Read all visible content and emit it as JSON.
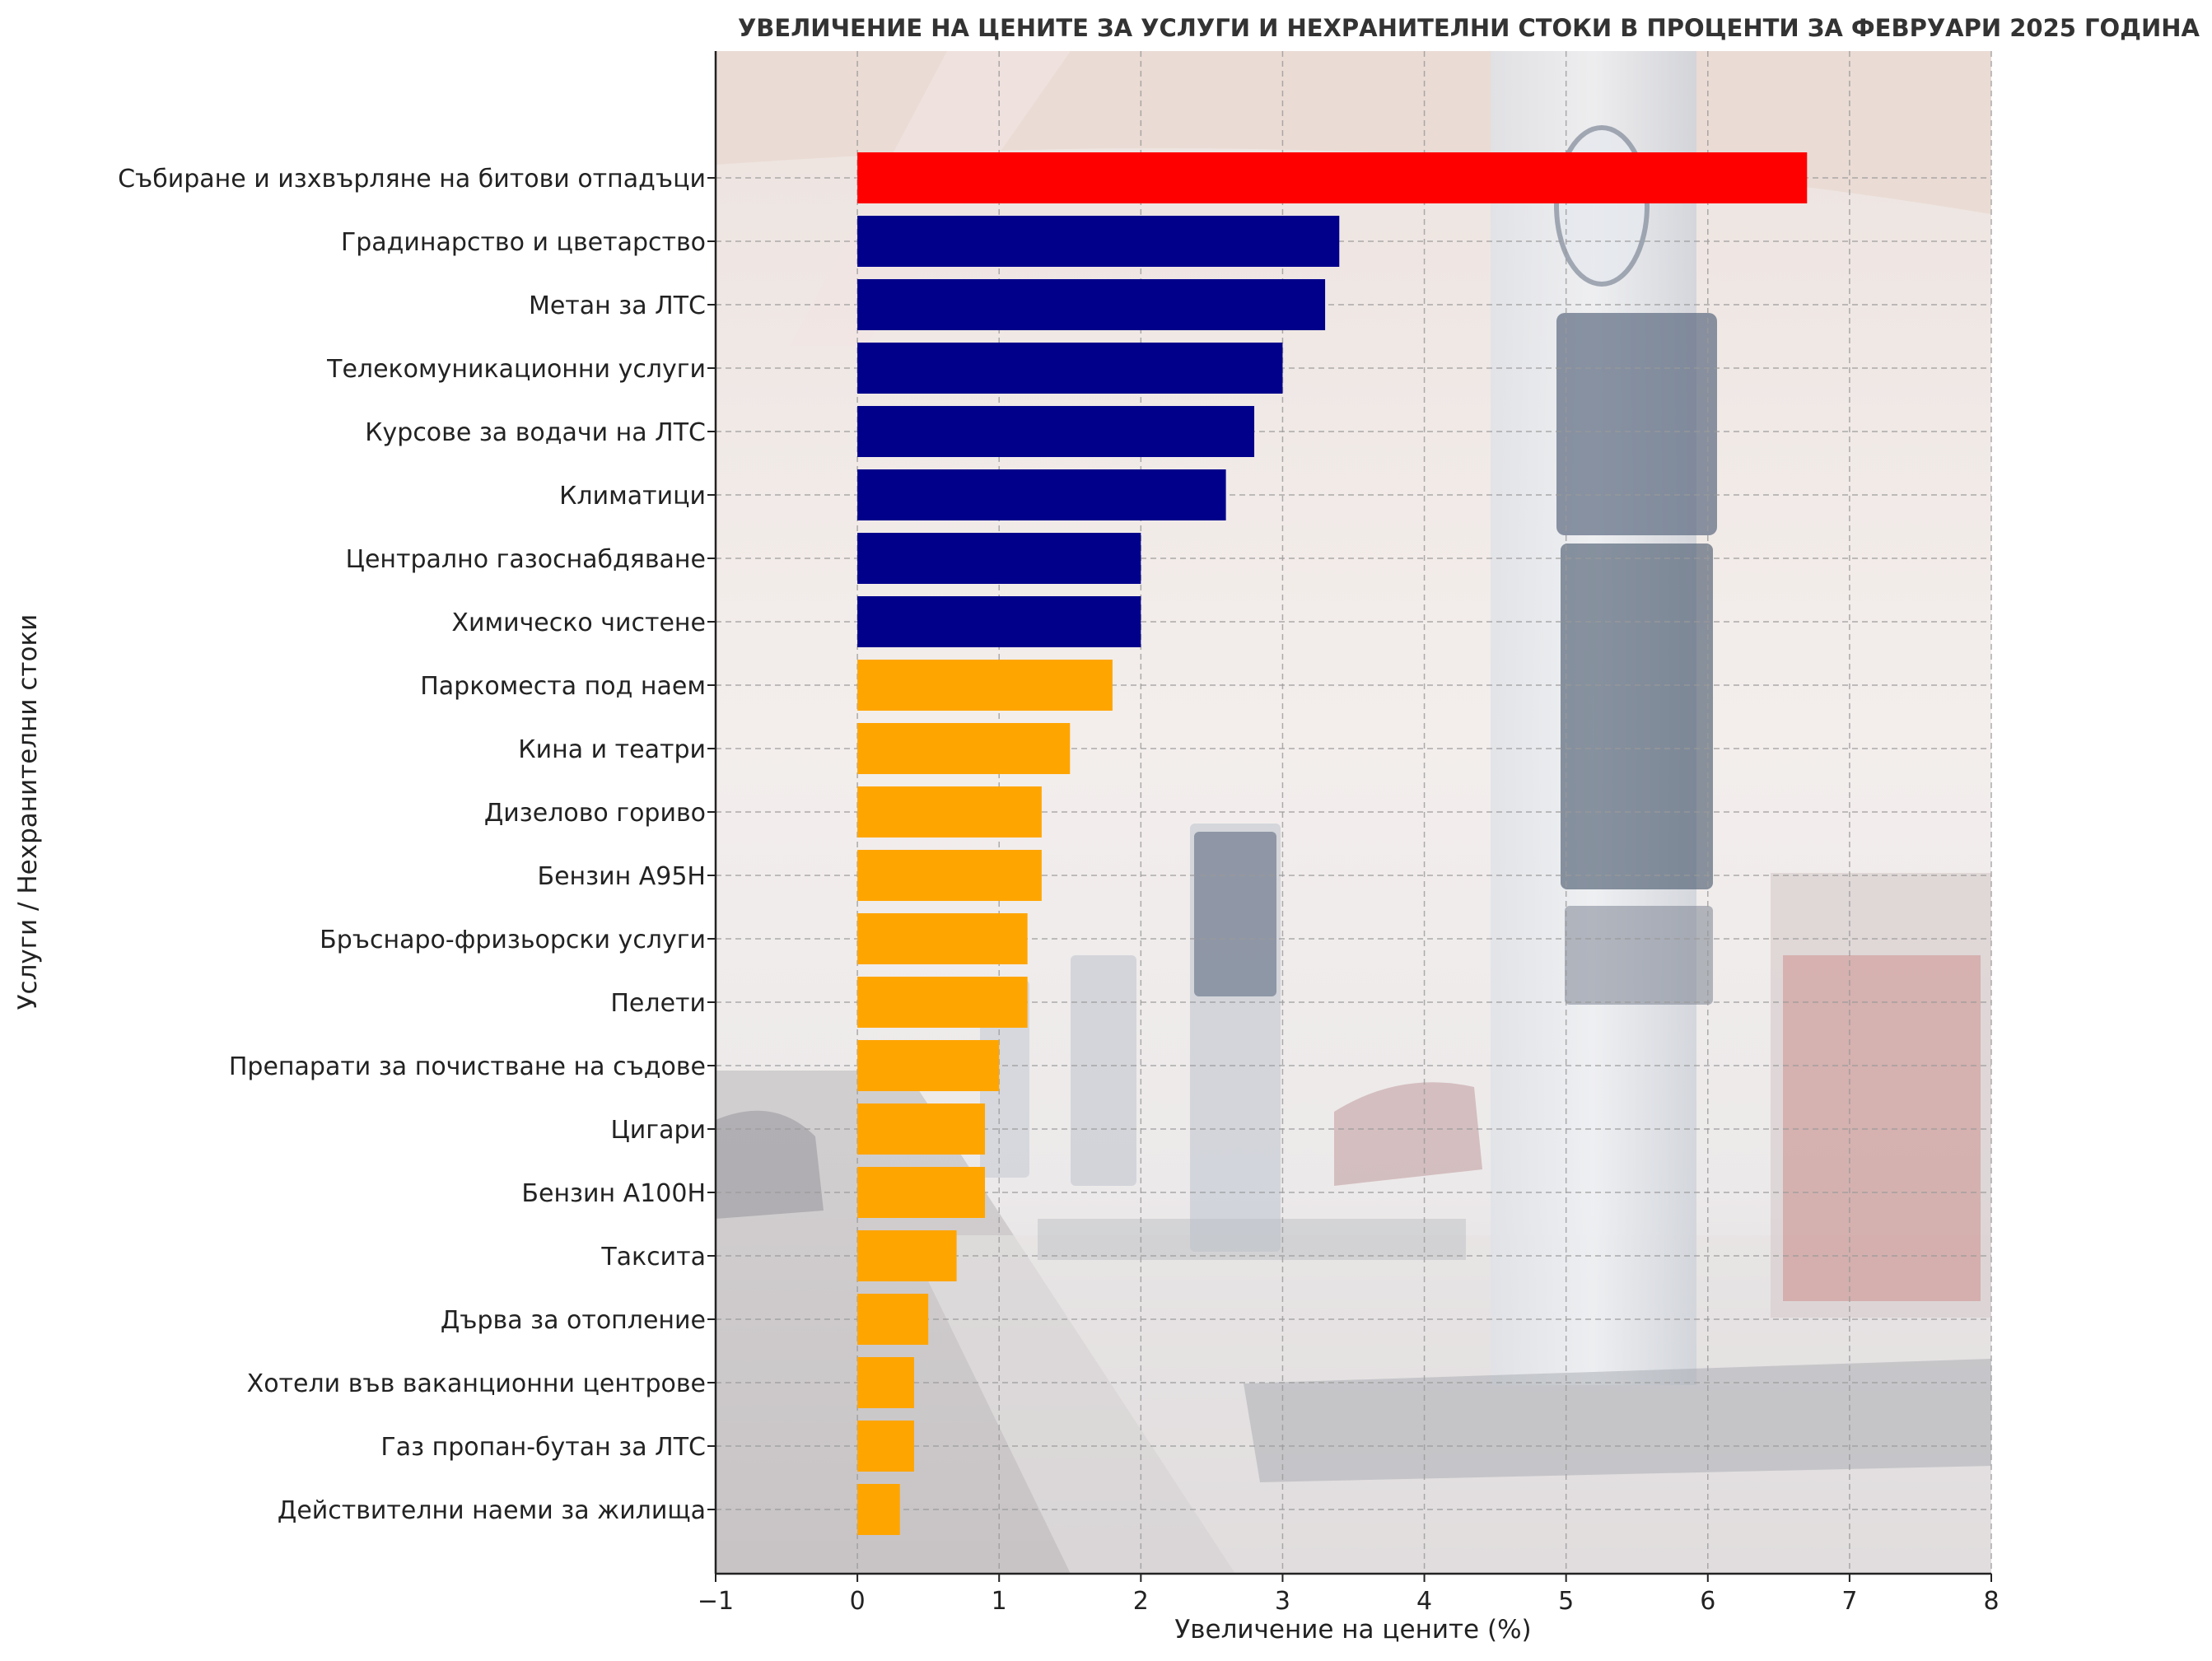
{
  "chart_data": {
    "type": "bar",
    "orientation": "horizontal",
    "title": "УВЕЛИЧЕНИЕ НА ЦЕНИТЕ ЗА УСЛУГИ И НЕХРАНИТЕЛНИ СТОКИ В ПРОЦЕНТИ ЗА ФЕВРУАРИ 2025 ГОДИНА",
    "xlabel": "Увеличение на цените (%)",
    "ylabel": "Услуги / Нехранителни стоки",
    "xlim": [
      -1,
      8
    ],
    "xticks": [
      -1,
      0,
      1,
      2,
      3,
      4,
      5,
      6,
      7,
      8
    ],
    "xtick_labels": [
      "−1",
      "0",
      "1",
      "2",
      "3",
      "4",
      "5",
      "6",
      "7",
      "8"
    ],
    "grid": true,
    "background": "photo of a petrol station with fuel price displays (faded)",
    "categories": [
      "Събиране и изхвърляне на битови отпадъци",
      "Градинарство и цветарство",
      "Метан за ЛТС",
      "Телекомуникационни услуги",
      "Курсове за водачи на ЛТС",
      "Климатици",
      "Централно газоснабдяване",
      "Химическо чистене",
      "Паркоместа под наем",
      "Кина и театри",
      "Дизелово гориво",
      "Бензин А95Н",
      "Бръснаро-фризьорски услуги",
      "Пелети",
      "Препарати за почистване на съдове",
      "Цигари",
      "Бензин А100Н",
      "Таксита",
      "Дърва за отопление",
      "Хотели във ваканционни центрове",
      "Газ пропан-бутан за ЛТС",
      "Действителни наеми за жилища"
    ],
    "values": [
      6.7,
      3.4,
      3.3,
      3.0,
      2.8,
      2.6,
      2.0,
      2.0,
      1.8,
      1.5,
      1.3,
      1.3,
      1.2,
      1.2,
      1.0,
      0.9,
      0.9,
      0.7,
      0.5,
      0.4,
      0.4,
      0.3
    ],
    "colors": [
      "#ff0000",
      "#00008b",
      "#00008b",
      "#00008b",
      "#00008b",
      "#00008b",
      "#00008b",
      "#00008b",
      "#ffa500",
      "#ffa500",
      "#ffa500",
      "#ffa500",
      "#ffa500",
      "#ffa500",
      "#ffa500",
      "#ffa500",
      "#ffa500",
      "#ffa500",
      "#ffa500",
      "#ffa500",
      "#ffa500",
      "#ffa500"
    ]
  }
}
